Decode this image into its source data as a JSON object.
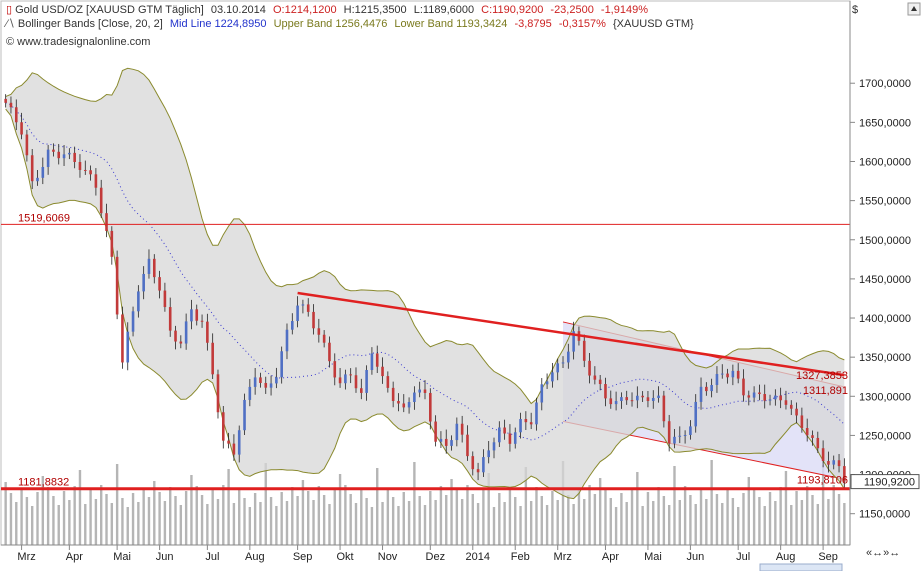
{
  "header": {
    "line1": {
      "symbol": "Gold USD/OZ [XAUUSD GTM  Täglich]",
      "date": "03.10.2014",
      "open": "O:1214,1200",
      "high": "H:1215,3500",
      "low": "L:1189,6000",
      "close": "C:1190,9200",
      "change": "-23,2500",
      "change_pct": "-1,9149%"
    },
    "line2": {
      "name": "Bollinger Bands [Close, 20, 2]",
      "mid": "Mid Line 1224,8950",
      "upper": "Upper Band 1256,4476",
      "lower": "Lower Band 1193,3424",
      "change": "-3,8795",
      "change_pct": "-0,3157%",
      "symbol": "{XAUUSD GTM}"
    },
    "line3": "© www.tradesignalonline.com"
  },
  "axis": {
    "currency": "$"
  },
  "colors": {
    "candle_up": "#4f6fc4",
    "candle_down": "#c23a3a",
    "band_fill": "#d7d7d7",
    "band_line": "#8a8a2e",
    "mid_line": "#3a3ad0",
    "channel_fill": "#dcdcf6",
    "red": "#e02020"
  },
  "chart_data": {
    "type": "candlestick",
    "title": "Gold USD/OZ [XAUUSD GTM  Täglich]",
    "ylim": [
      1110,
      1745
    ],
    "y_ticks": [
      "1150,0000",
      "1200,0000",
      "1250,0000",
      "1300,0000",
      "1350,0000",
      "1400,0000",
      "1450,0000",
      "1500,0000",
      "1550,0000",
      "1600,0000",
      "1650,0000",
      "1700,0000"
    ],
    "x_ticks": [
      "Mrz",
      "Apr",
      "Mai",
      "Jun",
      "Jul",
      "Aug",
      "Sep",
      "Okt",
      "Nov",
      "Dez",
      "2014",
      "Feb",
      "Mrz",
      "Apr",
      "Mai",
      "Jun",
      "Jul",
      "Aug",
      "Sep"
    ],
    "price_anchors": [
      [
        0,
        1675
      ],
      [
        3,
        1640
      ],
      [
        5,
        1570
      ],
      [
        8,
        1610
      ],
      [
        11,
        1610
      ],
      [
        14,
        1595
      ],
      [
        17,
        1570
      ],
      [
        20,
        1475
      ],
      [
        22,
        1345
      ],
      [
        25,
        1440
      ],
      [
        27,
        1470
      ],
      [
        29,
        1440
      ],
      [
        31,
        1380
      ],
      [
        33,
        1370
      ],
      [
        35,
        1410
      ],
      [
        37,
        1395
      ],
      [
        39,
        1330
      ],
      [
        41,
        1240
      ],
      [
        43,
        1230
      ],
      [
        45,
        1290
      ],
      [
        47,
        1330
      ],
      [
        49,
        1305
      ],
      [
        51,
        1330
      ],
      [
        53,
        1380
      ],
      [
        55,
        1420
      ],
      [
        57,
        1405
      ],
      [
        59,
        1380
      ],
      [
        61,
        1345
      ],
      [
        63,
        1315
      ],
      [
        65,
        1330
      ],
      [
        67,
        1300
      ],
      [
        69,
        1360
      ],
      [
        71,
        1320
      ],
      [
        73,
        1300
      ],
      [
        75,
        1280
      ],
      [
        77,
        1310
      ],
      [
        79,
        1300
      ],
      [
        81,
        1245
      ],
      [
        83,
        1235
      ],
      [
        85,
        1265
      ],
      [
        87,
        1225
      ],
      [
        89,
        1200
      ],
      [
        91,
        1235
      ],
      [
        93,
        1255
      ],
      [
        95,
        1245
      ],
      [
        97,
        1265
      ],
      [
        99,
        1270
      ],
      [
        101,
        1310
      ],
      [
        103,
        1335
      ],
      [
        105,
        1340
      ],
      [
        107,
        1385
      ],
      [
        109,
        1345
      ],
      [
        111,
        1320
      ],
      [
        113,
        1300
      ],
      [
        115,
        1290
      ],
      [
        117,
        1300
      ],
      [
        119,
        1295
      ],
      [
        121,
        1300
      ],
      [
        123,
        1295
      ],
      [
        125,
        1245
      ],
      [
        127,
        1245
      ],
      [
        129,
        1265
      ],
      [
        131,
        1310
      ],
      [
        133,
        1315
      ],
      [
        135,
        1330
      ],
      [
        137,
        1330
      ],
      [
        139,
        1305
      ],
      [
        141,
        1300
      ],
      [
        143,
        1300
      ],
      [
        145,
        1295
      ],
      [
        147,
        1295
      ],
      [
        149,
        1270
      ],
      [
        151,
        1255
      ],
      [
        153,
        1230
      ],
      [
        155,
        1215
      ],
      [
        157,
        1210
      ],
      [
        158,
        1191
      ]
    ],
    "horizontal_lines": [
      {
        "label": "1519,6069",
        "value": 1519.6069
      },
      {
        "label": "1181,8832",
        "value": 1181.8832
      }
    ],
    "trend_line": {
      "from": [
        55,
        1432
      ],
      "to": [
        158,
        1327
      ]
    },
    "trend_line_label": "1327,3853",
    "channel": {
      "upper": {
        "from": [
          105,
          1395
        ],
        "to": [
          158,
          1312
        ]
      },
      "lower": {
        "from": [
          105,
          1268
        ],
        "to": [
          158,
          1194
        ]
      },
      "upper_label": "1311,891",
      "lower_label": "1193,8106"
    },
    "last_price_label": "1190,9200",
    "bollinger": {
      "period": 20,
      "stddev": 2
    }
  }
}
